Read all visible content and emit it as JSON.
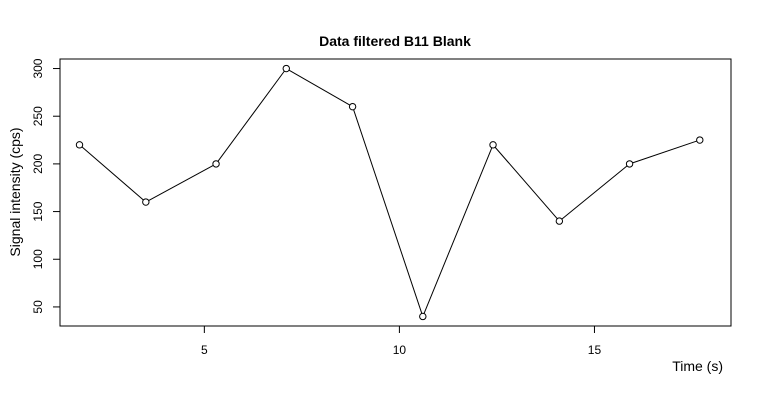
{
  "chart_data": {
    "type": "line",
    "title": "Data filtered B11 Blank",
    "xlabel": "Time (s)",
    "ylabel": "Signal intensity (cps)",
    "xlim": [
      1.3,
      18.5
    ],
    "ylim": [
      30,
      310
    ],
    "x_ticks": [
      5,
      10,
      15
    ],
    "y_ticks": [
      50,
      100,
      150,
      200,
      250,
      300
    ],
    "grid": false,
    "legend": "none",
    "series": [
      {
        "x": [
          1.8,
          3.5,
          5.3,
          7.1,
          8.8,
          10.6,
          12.4,
          14.1,
          15.9,
          17.7
        ],
        "y": [
          220,
          160,
          200,
          300,
          260,
          40,
          220,
          140,
          200,
          225
        ]
      }
    ]
  }
}
